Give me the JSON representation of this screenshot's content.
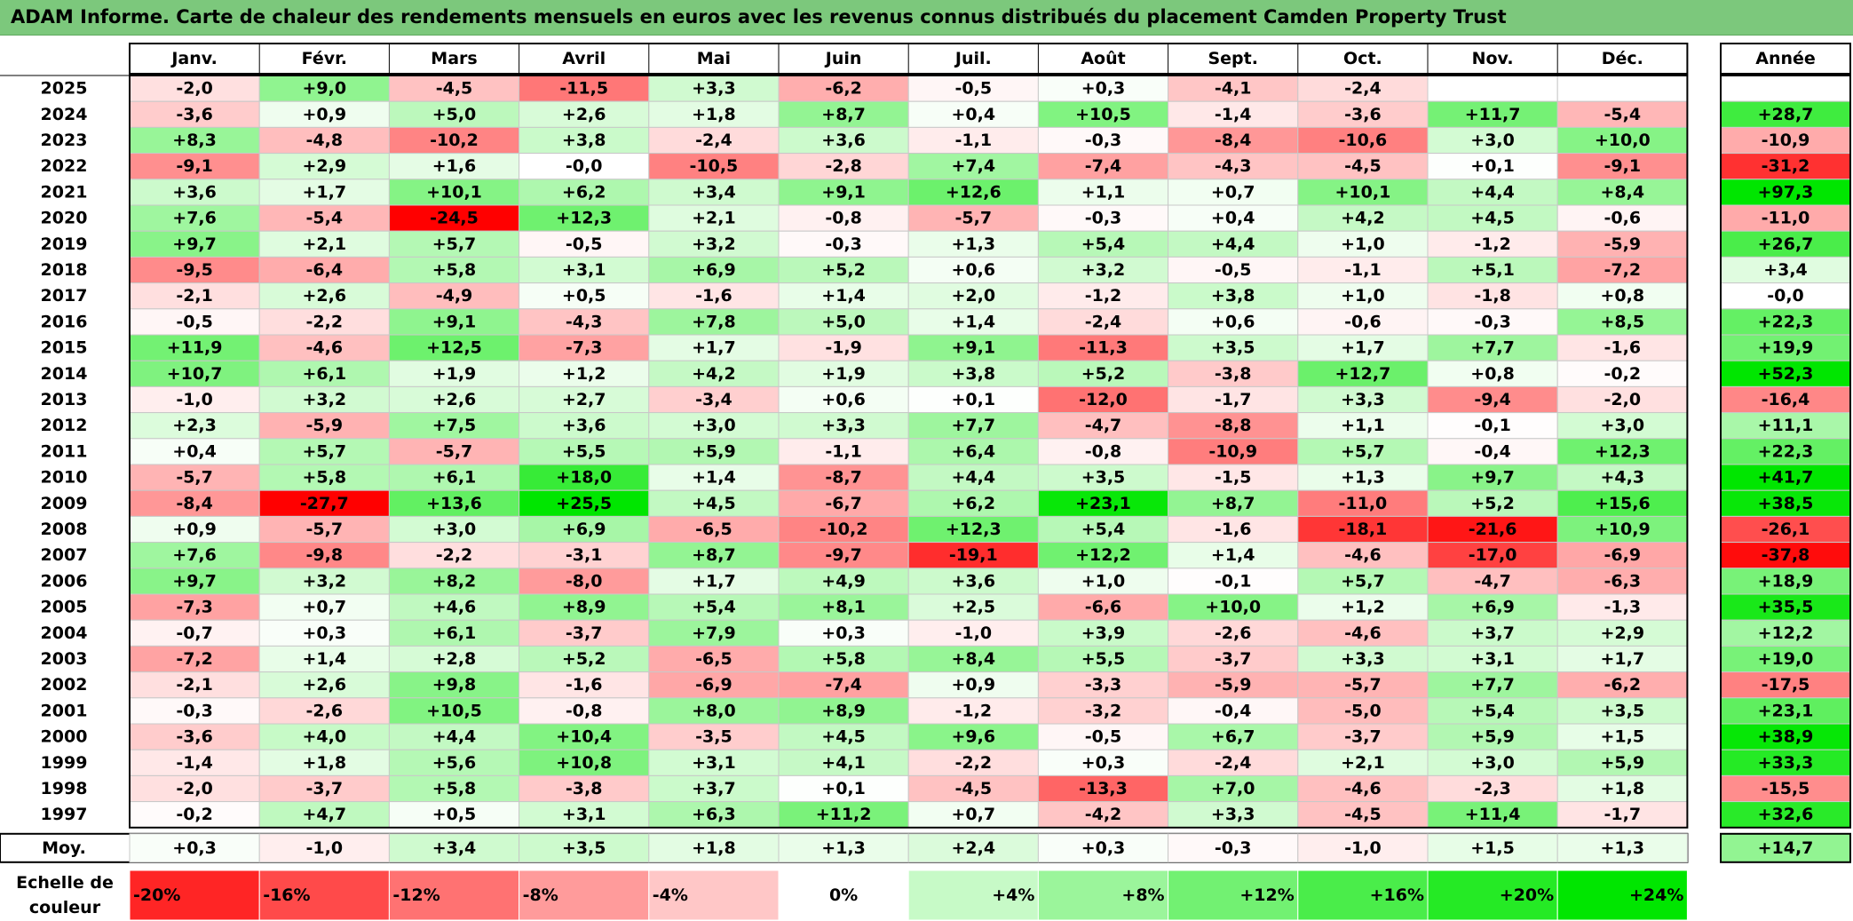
{
  "title": "ADAM Informe. Carte de chaleur des rendements mensuels en euros avec les revenus connus distribués du placement Camden Property Trust",
  "chart_data": {
    "type": "heatmap",
    "months": [
      "Janv.",
      "Févr.",
      "Mars",
      "Avril",
      "Mai",
      "Juin",
      "Juil.",
      "Août",
      "Sept.",
      "Oct.",
      "Nov.",
      "Déc."
    ],
    "year_header": "Année",
    "rows": [
      {
        "year": "2025",
        "values": [
          -2.0,
          9.0,
          -4.5,
          -11.5,
          3.3,
          -6.2,
          -0.5,
          0.3,
          -4.1,
          -2.4,
          null,
          null
        ],
        "annual": null
      },
      {
        "year": "2024",
        "values": [
          -3.6,
          0.9,
          5.0,
          2.6,
          1.8,
          8.7,
          0.4,
          10.5,
          -1.4,
          -3.6,
          11.7,
          -5.4
        ],
        "annual": 28.7
      },
      {
        "year": "2023",
        "values": [
          8.3,
          -4.8,
          -10.2,
          3.8,
          -2.4,
          3.6,
          -1.1,
          -0.3,
          -8.4,
          -10.6,
          3.0,
          10.0
        ],
        "annual": -10.9
      },
      {
        "year": "2022",
        "values": [
          -9.1,
          2.9,
          1.6,
          -0.0,
          -10.5,
          -2.8,
          7.4,
          -7.4,
          -4.3,
          -4.5,
          0.1,
          -9.1
        ],
        "annual": -31.2
      },
      {
        "year": "2021",
        "values": [
          3.6,
          1.7,
          10.1,
          6.2,
          3.4,
          9.1,
          12.6,
          1.1,
          0.7,
          10.1,
          4.4,
          8.4
        ],
        "annual": 97.3
      },
      {
        "year": "2020",
        "values": [
          7.6,
          -5.4,
          -24.5,
          12.3,
          2.1,
          -0.8,
          -5.7,
          -0.3,
          0.4,
          4.2,
          4.5,
          -0.6
        ],
        "annual": -11.0
      },
      {
        "year": "2019",
        "values": [
          9.7,
          2.1,
          5.7,
          -0.5,
          3.2,
          -0.3,
          1.3,
          5.4,
          4.4,
          1.0,
          -1.2,
          -5.9
        ],
        "annual": 26.7
      },
      {
        "year": "2018",
        "values": [
          -9.5,
          -6.4,
          5.8,
          3.1,
          6.9,
          5.2,
          0.6,
          3.2,
          -0.5,
          -1.1,
          5.1,
          -7.2
        ],
        "annual": 3.4
      },
      {
        "year": "2017",
        "values": [
          -2.1,
          2.6,
          -4.9,
          0.5,
          -1.6,
          1.4,
          2.0,
          -1.2,
          3.8,
          1.0,
          -1.8,
          0.8
        ],
        "annual": -0.0
      },
      {
        "year": "2016",
        "values": [
          -0.5,
          -2.2,
          9.1,
          -4.3,
          7.8,
          5.0,
          1.4,
          -2.4,
          0.6,
          -0.6,
          -0.3,
          8.5
        ],
        "annual": 22.3
      },
      {
        "year": "2015",
        "values": [
          11.9,
          -4.6,
          12.5,
          -7.3,
          1.7,
          -1.9,
          9.1,
          -11.3,
          3.5,
          1.7,
          7.7,
          -1.6
        ],
        "annual": 19.9
      },
      {
        "year": "2014",
        "values": [
          10.7,
          6.1,
          1.9,
          1.2,
          4.2,
          1.9,
          3.8,
          5.2,
          -3.8,
          12.7,
          0.8,
          -0.2
        ],
        "annual": 52.3
      },
      {
        "year": "2013",
        "values": [
          -1.0,
          3.2,
          2.6,
          2.7,
          -3.4,
          0.6,
          0.1,
          -12.0,
          -1.7,
          3.3,
          -9.4,
          -2.0
        ],
        "annual": -16.4
      },
      {
        "year": "2012",
        "values": [
          2.3,
          -5.9,
          7.5,
          3.6,
          3.0,
          3.3,
          7.7,
          -4.7,
          -8.8,
          1.1,
          -0.1,
          3.0
        ],
        "annual": 11.1
      },
      {
        "year": "2011",
        "values": [
          0.4,
          5.7,
          -5.7,
          5.5,
          5.9,
          -1.1,
          6.4,
          -0.8,
          -10.9,
          5.7,
          -0.4,
          12.3
        ],
        "annual": 22.3
      },
      {
        "year": "2010",
        "values": [
          -5.7,
          5.8,
          6.1,
          18.0,
          1.4,
          -8.7,
          4.4,
          3.5,
          -1.5,
          1.3,
          9.7,
          4.3
        ],
        "annual": 41.7
      },
      {
        "year": "2009",
        "values": [
          -8.4,
          -27.7,
          13.6,
          25.5,
          4.5,
          -6.7,
          6.2,
          23.1,
          8.7,
          -11.0,
          5.2,
          15.6
        ],
        "annual": 38.5
      },
      {
        "year": "2008",
        "values": [
          0.9,
          -5.7,
          3.0,
          6.9,
          -6.5,
          -10.2,
          12.3,
          5.4,
          -1.6,
          -18.1,
          -21.6,
          10.9
        ],
        "annual": -26.1
      },
      {
        "year": "2007",
        "values": [
          7.6,
          -9.8,
          -2.2,
          -3.1,
          8.7,
          -9.7,
          -19.1,
          12.2,
          1.4,
          -4.6,
          -17.0,
          -6.9
        ],
        "annual": -37.8
      },
      {
        "year": "2006",
        "values": [
          9.7,
          3.2,
          8.2,
          -8.0,
          1.7,
          4.9,
          3.6,
          1.0,
          -0.1,
          5.7,
          -4.7,
          -6.3
        ],
        "annual": 18.9
      },
      {
        "year": "2005",
        "values": [
          -7.3,
          0.7,
          4.6,
          8.9,
          5.4,
          8.1,
          2.5,
          -6.6,
          10.0,
          1.2,
          6.9,
          -1.3
        ],
        "annual": 35.5
      },
      {
        "year": "2004",
        "values": [
          -0.7,
          0.3,
          6.1,
          -3.7,
          7.9,
          0.3,
          -1.0,
          3.9,
          -2.6,
          -4.6,
          3.7,
          2.9
        ],
        "annual": 12.2
      },
      {
        "year": "2003",
        "values": [
          -7.2,
          1.4,
          2.8,
          5.2,
          -6.5,
          5.8,
          8.4,
          5.5,
          -3.7,
          3.3,
          3.1,
          1.7
        ],
        "annual": 19.0
      },
      {
        "year": "2002",
        "values": [
          -2.1,
          2.6,
          9.8,
          -1.6,
          -6.9,
          -7.4,
          0.9,
          -3.3,
          -5.9,
          -5.7,
          7.7,
          -6.2
        ],
        "annual": -17.5
      },
      {
        "year": "2001",
        "values": [
          -0.3,
          -2.6,
          10.5,
          -0.8,
          8.0,
          8.9,
          -1.2,
          -3.2,
          -0.4,
          -5.0,
          5.4,
          3.5
        ],
        "annual": 23.1
      },
      {
        "year": "2000",
        "values": [
          -3.6,
          4.0,
          4.4,
          10.4,
          -3.5,
          4.5,
          9.6,
          -0.5,
          6.7,
          -3.7,
          5.9,
          1.5
        ],
        "annual": 38.9
      },
      {
        "year": "1999",
        "values": [
          -1.4,
          1.8,
          5.6,
          10.8,
          3.1,
          4.1,
          -2.2,
          0.3,
          -2.4,
          2.1,
          3.0,
          5.9
        ],
        "annual": 33.3
      },
      {
        "year": "1998",
        "values": [
          -2.0,
          -3.7,
          5.8,
          -3.8,
          3.7,
          0.1,
          -4.5,
          -13.3,
          7.0,
          -4.6,
          -2.3,
          1.8
        ],
        "annual": -15.5
      },
      {
        "year": "1997",
        "values": [
          -0.2,
          4.7,
          0.5,
          3.1,
          6.3,
          11.2,
          0.7,
          -4.2,
          3.3,
          -4.5,
          11.4,
          -1.7
        ],
        "annual": 32.6
      }
    ],
    "average": {
      "label": "Moy.",
      "values": [
        0.3,
        -1.0,
        3.4,
        3.5,
        1.8,
        1.3,
        2.4,
        0.3,
        -0.3,
        -1.0,
        1.5,
        1.3
      ],
      "annual": 14.7
    },
    "scale": {
      "label_line1": "Echelle de",
      "label_line2": "couleur",
      "stops": [
        -20,
        -16,
        -12,
        -8,
        -4,
        0,
        4,
        8,
        12,
        16,
        20,
        24
      ],
      "labels": [
        "-20%",
        "-16%",
        "-12%",
        "-8%",
        "-4%",
        "0%",
        "+4%",
        "+8%",
        "+12%",
        "+16%",
        "+20%",
        "+24%"
      ]
    },
    "colors": {
      "neg_max": "#ff0000",
      "pos_max": "#00e600",
      "zero": "#ffffff",
      "title_bg": "#7cc87c"
    }
  }
}
